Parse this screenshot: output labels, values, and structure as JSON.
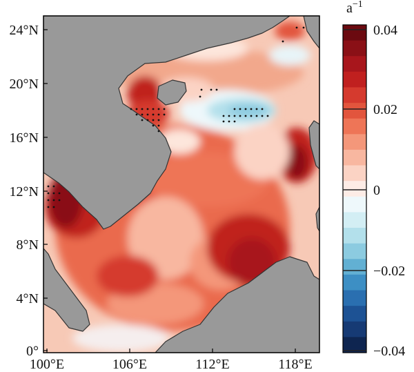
{
  "map": {
    "lat_labels": [
      "24°N",
      "20°N",
      "16°N",
      "12°N",
      "8°N",
      "4°N",
      "0°"
    ],
    "lon_labels": [
      "100°E",
      "106°E",
      "112°E",
      "118°E"
    ]
  },
  "colorbar": {
    "unit_base": "a",
    "unit_exp": "−1",
    "ticks": [
      "0.04",
      "0.02",
      "0",
      "−0.02",
      "−0.04"
    ],
    "colors": [
      "#6b0a10",
      "#8a1016",
      "#a8161c",
      "#c0201f",
      "#d53a2e",
      "#e2553d",
      "#ee7557",
      "#f4977a",
      "#f8b7a0",
      "#fbd3c4",
      "#fdecE6",
      "#eef8fb",
      "#d3eef4",
      "#b3e0eb",
      "#8ccbe0",
      "#62b0d3",
      "#3d8fc4",
      "#2a6fb0",
      "#1d5294",
      "#163a74",
      "#0e2550"
    ],
    "colors_hex": [
      "#6b0a10",
      "#8a1016",
      "#a8161c",
      "#c0201f",
      "#d53a2e",
      "#e2553d",
      "#ee7557",
      "#f4977a",
      "#f8b7a0",
      "#fbd3c4",
      "#fdece6",
      "#eef8fb",
      "#d3eef4",
      "#b3e0eb",
      "#8ccbe0",
      "#62b0d3",
      "#3d8fc4",
      "#2a6fb0",
      "#1d5294",
      "#163a74",
      "#0e2550"
    ],
    "land_color": "#999999",
    "sea_background": "#f7c9b6"
  }
}
